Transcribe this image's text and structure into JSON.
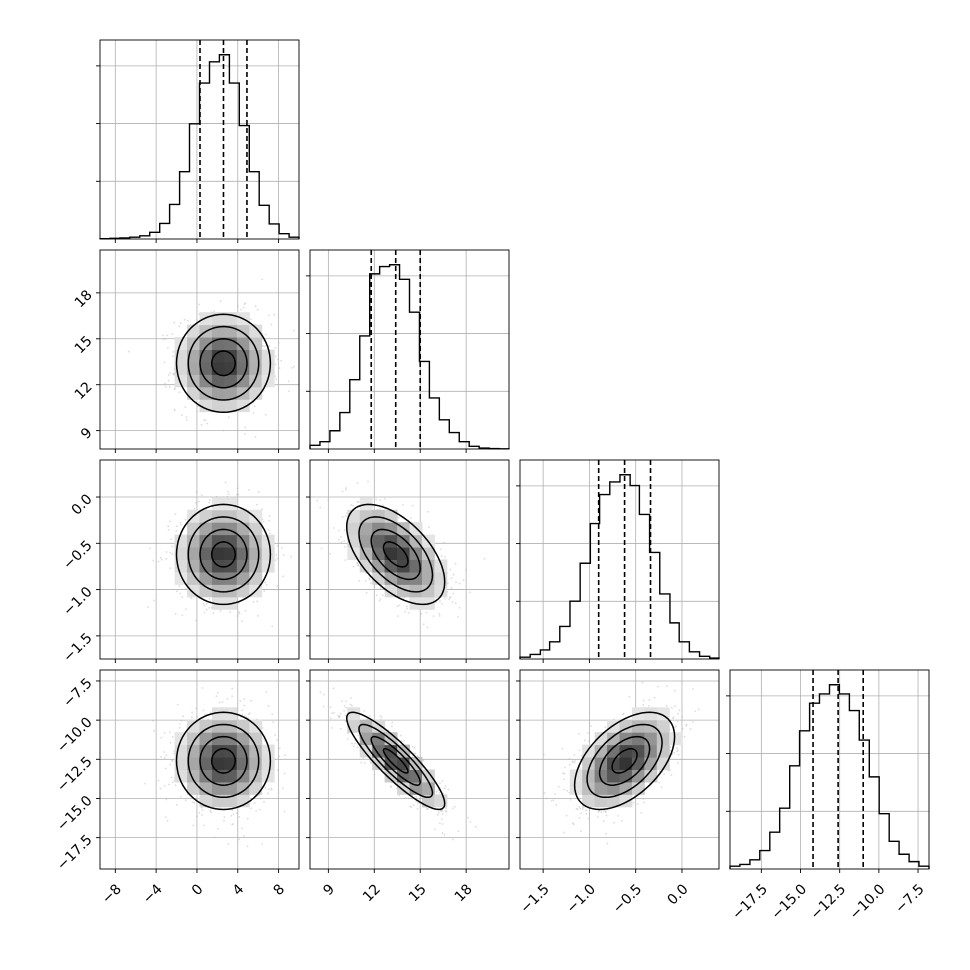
{
  "figure": {
    "type": "corner"
  },
  "chart_data": {
    "type": "corner",
    "parameters": [
      {
        "ticks": [
          -8,
          -4,
          0,
          4,
          8
        ],
        "tick_labels": [
          "−8",
          "−4",
          "0",
          "4",
          "8"
        ],
        "range": [
          -9.5,
          10
        ],
        "mean": 2.6,
        "std": 2.3,
        "quantiles": [
          0.3,
          2.6,
          4.9
        ],
        "histogram": {
          "edges": [
            -9.5,
            -8.53,
            -7.55,
            -6.58,
            -5.6,
            -4.63,
            -3.65,
            -2.68,
            -1.7,
            -0.73,
            0.25,
            1.23,
            2.2,
            3.18,
            4.15,
            5.13,
            6.1,
            7.08,
            8.05,
            9.03,
            10.0
          ],
          "counts": [
            2,
            4,
            6,
            10,
            18,
            38,
            88,
            195,
            380,
            650,
            880,
            1000,
            1040,
            880,
            640,
            380,
            190,
            85,
            30,
            10
          ]
        }
      },
      {
        "ticks": [
          9,
          12,
          15,
          18
        ],
        "tick_labels": [
          "9",
          "12",
          "15",
          "18"
        ],
        "range": [
          7.8,
          20.8
        ],
        "mean": 13.4,
        "std": 1.6,
        "quantiles": [
          11.8,
          13.4,
          15.0
        ],
        "histogram": {
          "edges": [
            7.8,
            8.45,
            9.1,
            9.75,
            10.4,
            11.05,
            11.7,
            12.35,
            13.0,
            13.65,
            14.3,
            14.95,
            15.6,
            16.25,
            16.9,
            17.55,
            18.2,
            18.85,
            19.5,
            20.15,
            20.8
          ],
          "counts": [
            20,
            40,
            100,
            200,
            380,
            620,
            960,
            1000,
            1010,
            930,
            750,
            480,
            280,
            160,
            90,
            40,
            15,
            5,
            2,
            1
          ]
        }
      },
      {
        "ticks": [
          -1.5,
          -1.0,
          -0.5,
          0.0
        ],
        "tick_labels": [
          "−1.5",
          "−1.0",
          "−0.5",
          "0.0"
        ],
        "range": [
          -1.75,
          0.4
        ],
        "mean": -0.62,
        "std": 0.27,
        "quantiles": [
          -0.9,
          -0.62,
          -0.34
        ],
        "histogram": {
          "edges": [
            -1.75,
            -1.64,
            -1.53,
            -1.43,
            -1.32,
            -1.21,
            -1.1,
            -0.99,
            -0.89,
            -0.78,
            -0.67,
            -0.56,
            -0.46,
            -0.35,
            -0.24,
            -0.13,
            -0.03,
            0.08,
            0.19,
            0.3,
            0.4
          ],
          "counts": [
            10,
            25,
            50,
            95,
            180,
            320,
            530,
            750,
            910,
            980,
            1020,
            960,
            800,
            590,
            360,
            200,
            95,
            40,
            15,
            5
          ]
        }
      },
      {
        "ticks": [
          -17.5,
          -15.0,
          -12.5,
          -10.0,
          -7.5
        ],
        "tick_labels": [
          "−17.5",
          "−15.0",
          "−12.5",
          "−10.0",
          "−7.5"
        ],
        "range": [
          -19.5,
          -6.8
        ],
        "mean": -12.6,
        "std": 1.55,
        "quantiles": [
          -14.2,
          -12.6,
          -11.0
        ],
        "histogram": {
          "edges": [
            -19.5,
            -18.87,
            -18.23,
            -17.6,
            -16.96,
            -16.33,
            -15.69,
            -15.06,
            -14.42,
            -13.79,
            -13.15,
            -12.52,
            -11.88,
            -11.25,
            -10.61,
            -9.98,
            -9.34,
            -8.71,
            -8.07,
            -7.44,
            -6.8
          ],
          "counts": [
            15,
            25,
            50,
            100,
            200,
            330,
            560,
            750,
            900,
            950,
            1000,
            950,
            860,
            700,
            500,
            300,
            150,
            80,
            40,
            15
          ]
        }
      }
    ],
    "correlation": [
      [
        1.0,
        0.0,
        0.0,
        0.0
      ],
      [
        0.0,
        1.0,
        -0.55,
        -0.88
      ],
      [
        0.0,
        -0.55,
        1.0,
        0.5
      ],
      [
        0.0,
        -0.88,
        0.5,
        1.0
      ]
    ],
    "contour_levels_sigma": [
      0.5,
      1.0,
      1.5,
      2.0
    ],
    "grid": true,
    "histogram_style": "step",
    "quantile_line_style": "dashed",
    "colors": {
      "line": "#000000",
      "points": "#b4b4b4",
      "grid": "#b0b0b0"
    }
  }
}
